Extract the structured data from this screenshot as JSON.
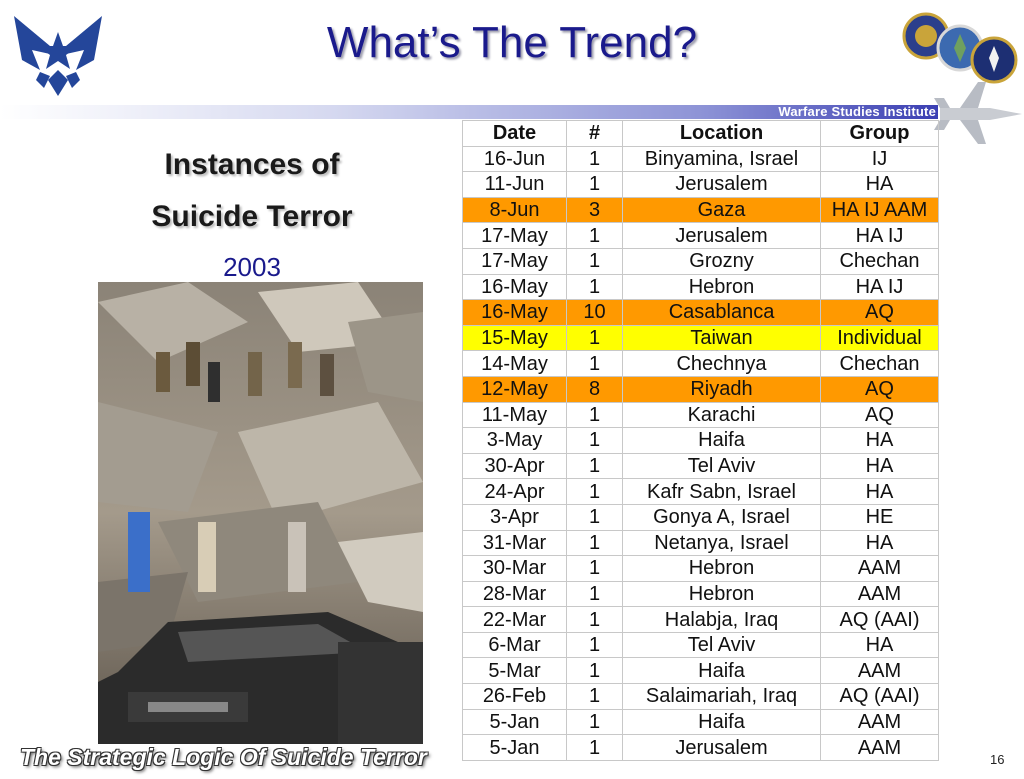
{
  "title": "What’s The Trend?",
  "banner": "Warfare Studies Institute",
  "left": {
    "heading_line1": "Instances of",
    "heading_line2": "Suicide Terror",
    "year": "2003"
  },
  "table": {
    "headers": [
      "Date",
      "#",
      "Location",
      "Group"
    ],
    "rows": [
      {
        "date": "16-Jun",
        "count": "1",
        "location": "Binyamina, Israel",
        "group": "IJ",
        "highlight": ""
      },
      {
        "date": "11-Jun",
        "count": "1",
        "location": "Jerusalem",
        "group": "HA",
        "highlight": ""
      },
      {
        "date": "8-Jun",
        "count": "3",
        "location": "Gaza",
        "group": "HA IJ AAM",
        "highlight": "orange"
      },
      {
        "date": "17-May",
        "count": "1",
        "location": "Jerusalem",
        "group": "HA IJ",
        "highlight": ""
      },
      {
        "date": "17-May",
        "count": "1",
        "location": "Grozny",
        "group": "Chechan",
        "highlight": ""
      },
      {
        "date": "16-May",
        "count": "1",
        "location": "Hebron",
        "group": "HA IJ",
        "highlight": ""
      },
      {
        "date": "16-May",
        "count": "10",
        "location": "Casablanca",
        "group": "AQ",
        "highlight": "orange"
      },
      {
        "date": "15-May",
        "count": "1",
        "location": "Taiwan",
        "group": "Individual",
        "highlight": "yellow"
      },
      {
        "date": "14-May",
        "count": "1",
        "location": "Chechnya",
        "group": "Chechan",
        "highlight": ""
      },
      {
        "date": "12-May",
        "count": "8",
        "location": "Riyadh",
        "group": "AQ",
        "highlight": "orange"
      },
      {
        "date": "11-May",
        "count": "1",
        "location": "Karachi",
        "group": "AQ",
        "highlight": ""
      },
      {
        "date": "3-May",
        "count": "1",
        "location": "Haifa",
        "group": "HA",
        "highlight": ""
      },
      {
        "date": "30-Apr",
        "count": "1",
        "location": "Tel Aviv",
        "group": "HA",
        "highlight": ""
      },
      {
        "date": "24-Apr",
        "count": "1",
        "location": "Kafr Sabn, Israel",
        "group": "HA",
        "highlight": ""
      },
      {
        "date": "3-Apr",
        "count": "1",
        "location": "Gonya A, Israel",
        "group": "HE",
        "highlight": ""
      },
      {
        "date": "31-Mar",
        "count": "1",
        "location": "Netanya, Israel",
        "group": "HA",
        "highlight": ""
      },
      {
        "date": "30-Mar",
        "count": "1",
        "location": "Hebron",
        "group": "AAM",
        "highlight": ""
      },
      {
        "date": "28-Mar",
        "count": "1",
        "location": "Hebron",
        "group": "AAM",
        "highlight": ""
      },
      {
        "date": "22-Mar",
        "count": "1",
        "location": "Halabja, Iraq",
        "group": "AQ (AAI)",
        "highlight": ""
      },
      {
        "date": "6-Mar",
        "count": "1",
        "location": "Tel Aviv",
        "group": "HA",
        "highlight": ""
      },
      {
        "date": "5-Mar",
        "count": "1",
        "location": "Haifa",
        "group": "AAM",
        "highlight": ""
      },
      {
        "date": "26-Feb",
        "count": "1",
        "location": "Salaimariah, Iraq",
        "group": "AQ (AAI)",
        "highlight": ""
      },
      {
        "date": "5-Jan",
        "count": "1",
        "location": "Haifa",
        "group": "AAM",
        "highlight": ""
      },
      {
        "date": "5-Jan",
        "count": "1",
        "location": "Jerusalem",
        "group": "AAM",
        "highlight": ""
      }
    ]
  },
  "footer": "The Strategic Logic Of Suicide Terror",
  "page_number": "16",
  "colors": {
    "title": "#1a1a8c",
    "orange_highlight": "#ff9900",
    "yellow_highlight": "#ffff00"
  }
}
